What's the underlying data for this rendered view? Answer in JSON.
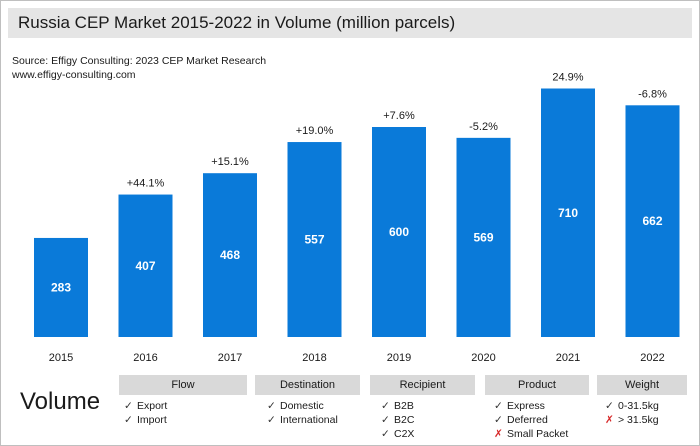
{
  "header": {
    "title": "Russia CEP Market 2015-2022 in Volume (million parcels)",
    "source": "Source: Effigy Consulting: 2023 CEP Market Research",
    "website": "www.effigy-consulting.com"
  },
  "chart_data": {
    "type": "bar",
    "title": "Russia CEP Market 2015-2022 in Volume (million parcels)",
    "xlabel": "",
    "ylabel": "",
    "categories": [
      "2015",
      "2016",
      "2017",
      "2018",
      "2019",
      "2020",
      "2021",
      "2022"
    ],
    "values": [
      283,
      407,
      468,
      557,
      600,
      569,
      710,
      662
    ],
    "value_labels": [
      "283",
      "407",
      "468",
      "557",
      "600",
      "569",
      "710",
      "662"
    ],
    "growth_labels": [
      "",
      "+44.1%",
      "+15.1%",
      "+19.0%",
      "+7.6%",
      "-5.2%",
      "24.9%",
      "-6.8%"
    ],
    "ylim": [
      0,
      760
    ],
    "grid": false,
    "legend": "none",
    "bar_color": "#0a7ad9",
    "text_color": "#1a1a1a",
    "value_label_color": "#ffffff"
  },
  "legend_table": {
    "volume_label": "Volume",
    "groups": [
      {
        "header": "Flow",
        "items": [
          {
            "label": "Export",
            "mark": "check"
          },
          {
            "label": "Import",
            "mark": "check"
          }
        ]
      },
      {
        "header": "Destination",
        "items": [
          {
            "label": "Domestic",
            "mark": "check"
          },
          {
            "label": "International",
            "mark": "check"
          }
        ]
      },
      {
        "header": "Recipient",
        "items": [
          {
            "label": "B2B",
            "mark": "check"
          },
          {
            "label": "B2C",
            "mark": "check"
          },
          {
            "label": "C2X",
            "mark": "check"
          }
        ]
      },
      {
        "header": "Product",
        "items": [
          {
            "label": "Express",
            "mark": "check"
          },
          {
            "label": "Deferred",
            "mark": "check"
          },
          {
            "label": "Small Packet",
            "mark": "cross"
          }
        ]
      },
      {
        "header": "Weight",
        "items": [
          {
            "label": "0-31.5kg",
            "mark": "check"
          },
          {
            "label": "> 31.5kg",
            "mark": "cross"
          }
        ]
      }
    ],
    "header_bg": "#d9d9d9",
    "check_symbol": "✓",
    "cross_symbol": "✗",
    "cross_color": "#d62728"
  }
}
